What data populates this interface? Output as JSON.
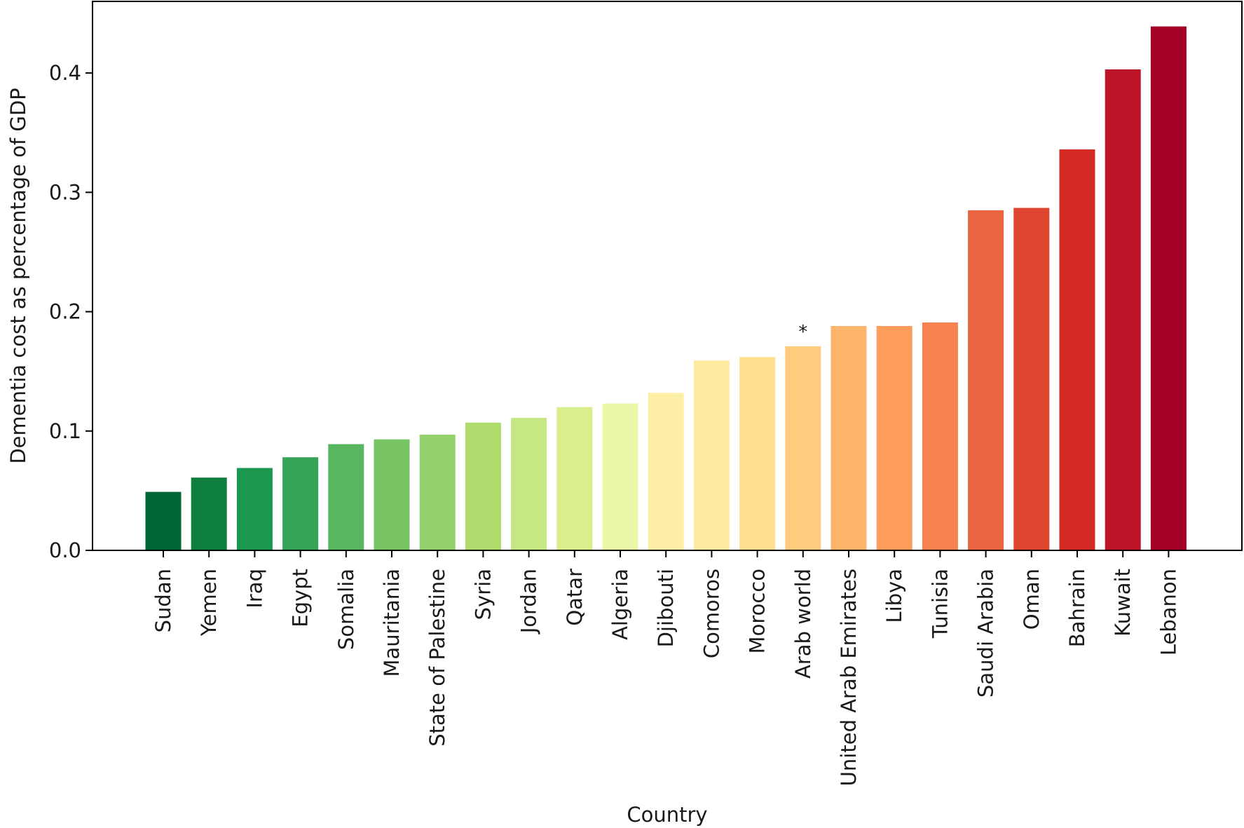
{
  "chart_data": {
    "type": "bar",
    "xlabel": "Country",
    "ylabel": "Dementia cost as percentage of GDP",
    "ylim": [
      0,
      0.46
    ],
    "yticks": [
      "0.0",
      "0.1",
      "0.2",
      "0.3",
      "0.4"
    ],
    "grid": false,
    "categories": [
      "Sudan",
      "Yemen",
      "Iraq",
      "Egypt",
      "Somalia",
      "Mauritania",
      "State of Palestine",
      "Syria",
      "Jordan",
      "Qatar",
      "Algeria",
      "Djibouti",
      "Comoros",
      "Morocco",
      "Arab world",
      "United Arab Emirates",
      "Libya",
      "Tunisia",
      "Saudi Arabia",
      "Oman",
      "Bahrain",
      "Kuwait",
      "Lebanon"
    ],
    "values": [
      0.049,
      0.061,
      0.069,
      0.078,
      0.089,
      0.093,
      0.097,
      0.107,
      0.111,
      0.12,
      0.123,
      0.132,
      0.159,
      0.162,
      0.171,
      0.188,
      0.188,
      0.191,
      0.285,
      0.287,
      0.336,
      0.403,
      0.439
    ],
    "colors": [
      "#006837",
      "#0f7f40",
      "#1a9850",
      "#36a456",
      "#58b560",
      "#78c464",
      "#95d16c",
      "#afdc6d",
      "#c6e784",
      "#d9ef8b",
      "#ecf8a8",
      "#fdefa5",
      "#feeba0",
      "#fee090",
      "#fecc7c",
      "#fdb56c",
      "#fc9d5c",
      "#f6824f",
      "#e9643f",
      "#e0452f",
      "#d22a23",
      "#bb1527",
      "#a50026"
    ],
    "annotations": [
      {
        "category": "Arab world",
        "text": "*"
      }
    ]
  }
}
